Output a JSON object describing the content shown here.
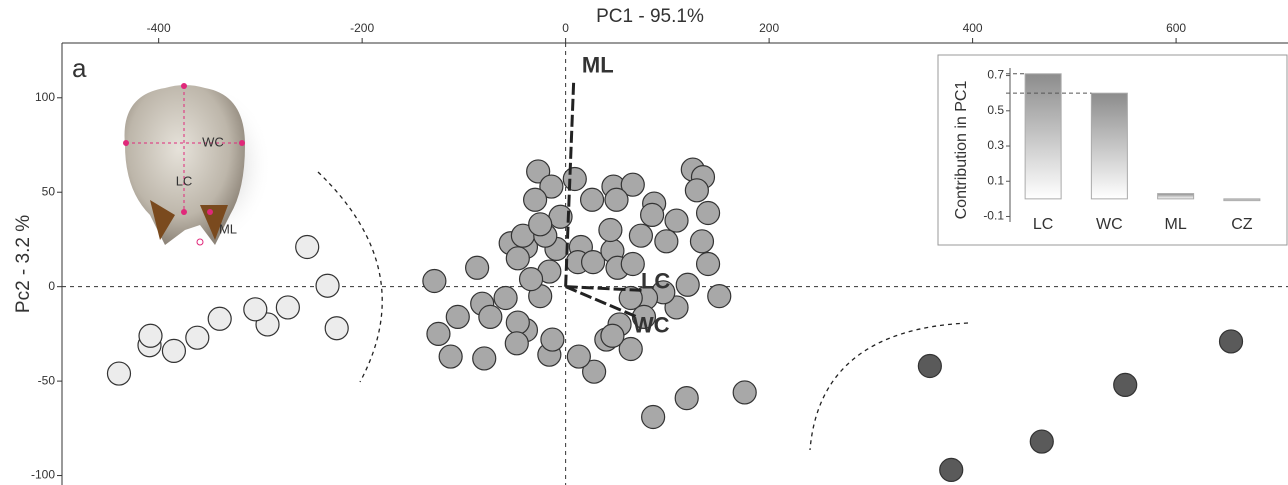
{
  "chart_data": [
    {
      "type": "scatter",
      "panel": "a",
      "xlabel": "PC1 - 95.1%",
      "ylabel": "Pc2  - 3.2 %",
      "xlim": [
        -495,
        710
      ],
      "ylim": [
        -105,
        129
      ],
      "xticks": [
        -400,
        -200,
        0,
        200,
        400,
        600
      ],
      "yticks": [
        -100,
        -50,
        0,
        50,
        100
      ],
      "series": [
        {
          "color": "#ececec",
          "x": [
            -254,
            -234,
            -225,
            -273,
            -293,
            -305,
            -340,
            -362,
            -385,
            -409,
            -408,
            -439
          ],
          "y": [
            21,
            0.5,
            -22,
            -11,
            -20,
            -12,
            -17,
            -27,
            -34,
            -31,
            -26,
            -46
          ]
        },
        {
          "color": "#a8a8a8",
          "x": [
            -27,
            -14,
            9,
            -30,
            26,
            47,
            66,
            50,
            87,
            125,
            135,
            129,
            140,
            85,
            109,
            99,
            134,
            140,
            151,
            120,
            109,
            96,
            79,
            64,
            77,
            53,
            64,
            40,
            28,
            13,
            -16,
            -39,
            -25,
            -16,
            -9,
            -39,
            -54,
            -87,
            -47,
            -42,
            -20,
            -5,
            -25,
            15,
            12,
            27,
            46,
            51,
            66,
            44,
            74,
            -129,
            -82,
            -106,
            -125,
            -74,
            -59,
            -47,
            -113,
            -80,
            -48,
            -13,
            46,
            86,
            119,
            176,
            -34
          ],
          "y": [
            61,
            53,
            57,
            46,
            46,
            53,
            54,
            46,
            44,
            62,
            58,
            51,
            39,
            38,
            35,
            24,
            24,
            12,
            -5,
            1,
            -11,
            -3,
            -6,
            -6,
            -16,
            -20,
            -33,
            -28,
            -45,
            -37,
            -36,
            -23,
            -5,
            8,
            20,
            21,
            23,
            10,
            15,
            27,
            27,
            37,
            33,
            21,
            13,
            13,
            19,
            10,
            12,
            30,
            27,
            3,
            -9,
            -16,
            -25,
            -16,
            -6,
            -19,
            -37,
            -38,
            -30,
            -28,
            -26,
            -69,
            -59,
            -56,
            4
          ]
        },
        {
          "color": "#5a5a5a",
          "x": [
            358,
            550,
            654,
            468,
            379
          ],
          "y": [
            -42,
            -52,
            -29,
            -82,
            -97
          ]
        }
      ],
      "loadings": [
        {
          "label": "ML",
          "x": 8,
          "y": 110
        },
        {
          "label": "LC",
          "x": 78,
          "y": -2
        },
        {
          "label": "WC",
          "x": 70,
          "y": -16
        }
      ],
      "annotations": [
        "WC",
        "LC",
        "ML"
      ]
    },
    {
      "type": "bar",
      "ylabel": "Contribution  in PC1",
      "categories": [
        "LC",
        "WC",
        "ML",
        "CZ"
      ],
      "values": [
        0.71,
        0.6,
        0.03,
        -0.01
      ],
      "color": "#8c8c8c",
      "ylim": [
        -0.12,
        0.76
      ],
      "yticks": [
        0.7,
        0.5,
        0.3,
        0.1,
        -0.1
      ]
    }
  ]
}
